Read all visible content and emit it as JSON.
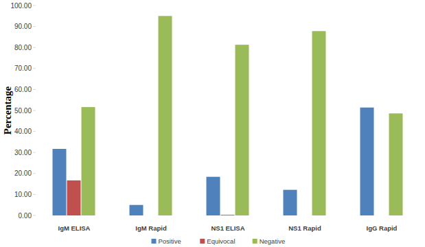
{
  "chart_data": {
    "type": "bar",
    "ylabel": "Percentage",
    "categories": [
      "IgM ELISA",
      "IgM Rapid",
      "NS1 ELISA",
      "NS1 Rapid",
      "IgG Rapid"
    ],
    "series": [
      {
        "name": "Positive",
        "color": "#4f81bd",
        "values": [
          31.7,
          5.0,
          18.4,
          12.2,
          51.4
        ]
      },
      {
        "name": "Equivocal",
        "color": "#c0504d",
        "values": [
          16.7,
          0,
          0.3,
          0,
          0
        ]
      },
      {
        "name": "Negative",
        "color": "#9bbb59",
        "values": [
          51.6,
          95.0,
          81.3,
          87.8,
          48.6
        ]
      }
    ],
    "ylim": [
      0,
      100
    ],
    "yticks": [
      {
        "value": 0,
        "label": "0.00"
      },
      {
        "value": 10,
        "label": "10.00"
      },
      {
        "value": 20,
        "label": "20.00"
      },
      {
        "value": 30,
        "label": "30.00"
      },
      {
        "value": 40,
        "label": "40.00"
      },
      {
        "value": 50,
        "label": "50.00"
      },
      {
        "value": 60,
        "label": "60.00"
      },
      {
        "value": 70,
        "label": "70.00"
      },
      {
        "value": 80,
        "label": "80.00"
      },
      {
        "value": 90,
        "label": "90.00"
      },
      {
        "value": 100,
        "label": "100.00"
      }
    ],
    "grid": false,
    "legend": "bottom"
  }
}
